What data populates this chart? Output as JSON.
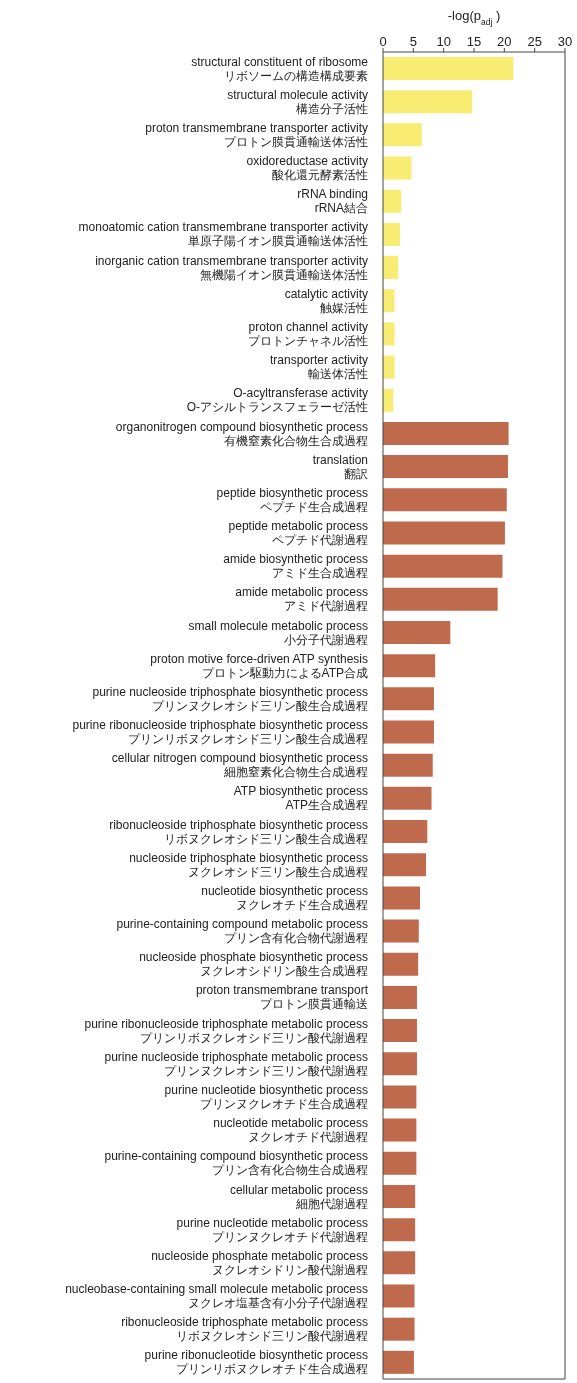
{
  "chart_data": {
    "type": "bar",
    "orientation": "horizontal",
    "xlabel": "-log(p$_{adj}$)",
    "categories": [
      "structural constituent of ribosome\nリボソームの構造構成要素",
      "structural molecule activity\n構造分子活性",
      "proton transmembrane transporter activity\nプロトン膜貫通輸送体活性",
      "oxidoreductase activity\n酸化還元酵素活性",
      "rRNA binding\nrRNA結合",
      "monoatomic cation transmembrane transporter activity\n単原子陽イオン膜貫通輸送体活性",
      "inorganic cation transmembrane transporter activity\n無機陽イオン膜貫通輸送体活性",
      "catalytic activity\n触媒活性",
      "proton channel activity\nプロトンチャネル活性",
      "transporter activity\n輸送体活性",
      "O-acyltransferase activity\nO-アシルトランスフェラーゼ活性",
      "organonitrogen compound biosynthetic process\n有機窒素化合物生合成過程",
      "translation\n翻訳",
      "peptide biosynthetic process\nペプチド生合成過程",
      "peptide metabolic process\nペプチド代謝過程",
      "amide biosynthetic process\nアミド生合成過程",
      "amide metabolic process\nアミド代謝過程",
      "small molecule metabolic process\n小分子代謝過程",
      "proton motive force-driven ATP synthesis\nプロトン駆動力によるATP合成",
      "purine nucleoside triphosphate biosynthetic process\nプリンヌクレオシド三リン酸生合成過程",
      "purine ribonucleoside triphosphate biosynthetic process\nプリンリボヌクレオシド三リン酸生合成過程",
      "cellular nitrogen compound biosynthetic process\n細胞窒素化合物生合成過程",
      "ATP biosynthetic process\nATP生合成過程",
      "ribonucleoside triphosphate biosynthetic process\nリボヌクレオシド三リン酸生合成過程",
      "nucleoside triphosphate biosynthetic process\nヌクレオシド三リン酸生合成過程",
      "nucleotide biosynthetic process\nヌクレオチド生合成過程",
      "purine-containing compound metabolic process\nプリン含有化合物代謝過程",
      "nucleoside phosphate biosynthetic process\nヌクレオシドリン酸生合成過程",
      "proton transmembrane transport\nプロトン膜貫通輸送",
      "purine ribonucleoside triphosphate metabolic process\nプリンリボヌクレオシド三リン酸代謝過程",
      "purine nucleoside triphosphate metabolic process\nプリンヌクレオシド三リン酸代謝過程",
      "purine nucleotide biosynthetic process\nプリンヌクレオチド生合成過程",
      "nucleotide metabolic process\nヌクレオチド代謝過程",
      "purine-containing compound biosynthetic process\nプリン含有化合物生合成過程",
      "cellular metabolic process\n細胞代謝過程",
      "purine nucleotide metabolic process\nプリンヌクレオチド代謝過程",
      "nucleoside phosphate metabolic process\nヌクレオシドリン酸代謝過程",
      "nucleobase-containing small molecule metabolic process\nヌクレオ塩基含有小分子代謝過程",
      "ribonucleoside triphosphate metabolic process\nリボヌクレオシド三リン酸代謝過程",
      "purine ribonucleotide biosynthetic process\nプリンリボヌクレオチド生合成過程"
    ],
    "values": [
      21.5,
      14.7,
      6.4,
      4.7,
      3.0,
      2.8,
      2.5,
      1.9,
      1.9,
      1.9,
      1.7,
      20.7,
      20.6,
      20.4,
      20.1,
      19.7,
      18.9,
      11.1,
      8.6,
      8.4,
      8.4,
      8.2,
      8.0,
      7.3,
      7.1,
      6.1,
      5.9,
      5.8,
      5.6,
      5.6,
      5.6,
      5.5,
      5.5,
      5.5,
      5.3,
      5.3,
      5.3,
      5.2,
      5.2,
      5.1
    ],
    "colors": [
      "#f8ec72",
      "#f8ec72",
      "#f8ec72",
      "#f8ec72",
      "#f8ec72",
      "#f8ec72",
      "#f8ec72",
      "#f8ec72",
      "#f8ec72",
      "#f8ec72",
      "#f8ec72",
      "#bf6a4c",
      "#bf6a4c",
      "#bf6a4c",
      "#bf6a4c",
      "#bf6a4c",
      "#bf6a4c",
      "#bf6a4c",
      "#bf6a4c",
      "#bf6a4c",
      "#bf6a4c",
      "#bf6a4c",
      "#bf6a4c",
      "#bf6a4c",
      "#bf6a4c",
      "#bf6a4c",
      "#bf6a4c",
      "#bf6a4c",
      "#bf6a4c",
      "#bf6a4c",
      "#bf6a4c",
      "#bf6a4c",
      "#bf6a4c",
      "#bf6a4c",
      "#bf6a4c",
      "#bf6a4c",
      "#bf6a4c",
      "#bf6a4c",
      "#bf6a4c",
      "#bf6a4c"
    ],
    "xlim": [
      0,
      30
    ],
    "xticks": [
      0,
      5,
      10,
      15,
      20,
      25,
      30
    ],
    "grid": false,
    "legend": false
  }
}
